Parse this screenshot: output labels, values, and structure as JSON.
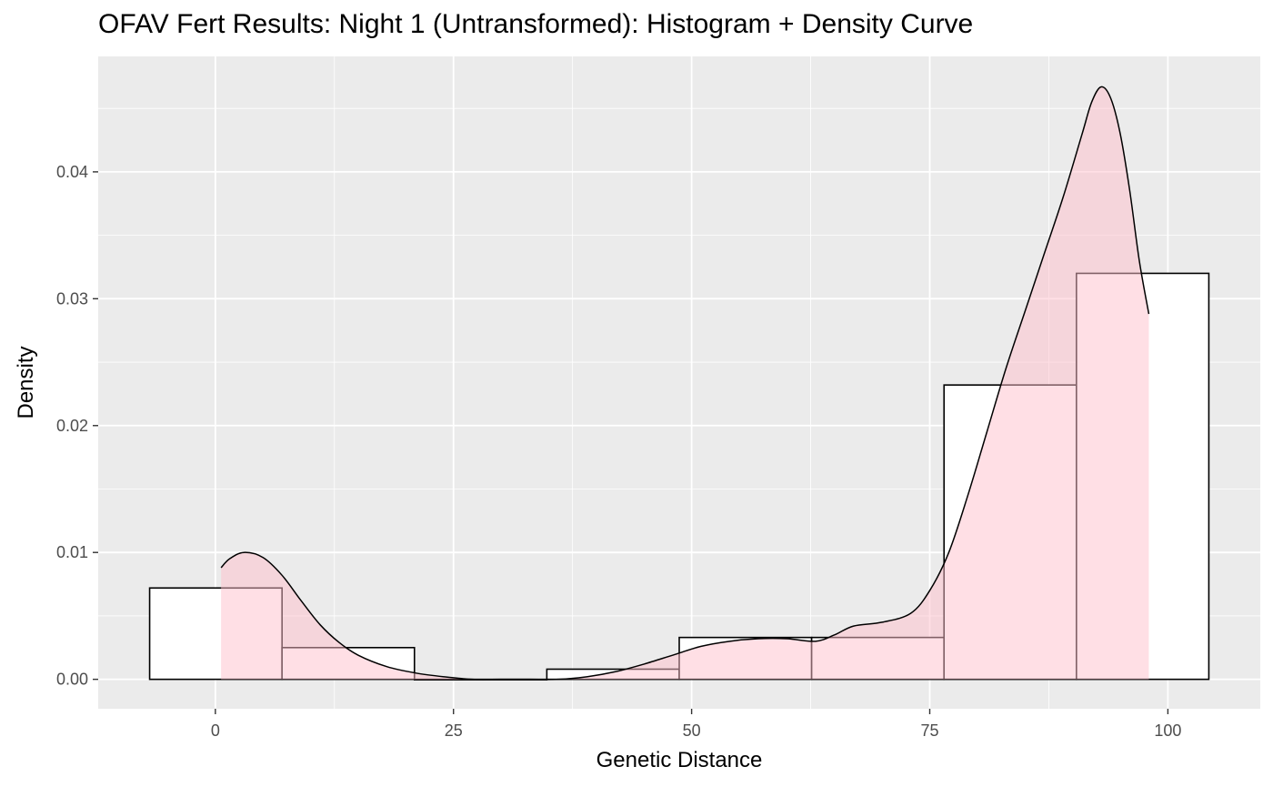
{
  "chart_data": {
    "type": "bar",
    "subtype": "histogram-with-density",
    "title": "OFAV Fert Results: Night 1 (Untransformed): Histogram + Density Curve",
    "xlabel": "Genetic Distance",
    "ylabel": "Density",
    "xlim": [
      -12.3,
      109.7
    ],
    "ylim": [
      -0.00232,
      0.0491
    ],
    "x_ticks": [
      0,
      25,
      50,
      75,
      100
    ],
    "x_tick_labels": [
      "0",
      "25",
      "50",
      "75",
      "100"
    ],
    "y_ticks": [
      0,
      0.01,
      0.02,
      0.03,
      0.04
    ],
    "y_tick_labels": [
      "0.00",
      "0.01",
      "0.02",
      "0.03",
      "0.04"
    ],
    "grid": true,
    "legend": "none",
    "histogram": {
      "bin_edges": [
        -6.9,
        7.0,
        20.9,
        34.8,
        48.7,
        62.6,
        76.5,
        90.4,
        104.3
      ],
      "density": [
        0.0072,
        0.0025,
        0.0,
        0.0008,
        0.0033,
        0.0033,
        0.0232,
        0.032
      ]
    },
    "density_curve": {
      "x": [
        0.6,
        1.5,
        3,
        5,
        7,
        9,
        11,
        13,
        15,
        18,
        21,
        24,
        27,
        30,
        33,
        36,
        39,
        42,
        45,
        48,
        51,
        54,
        57,
        60,
        63,
        65,
        67,
        70,
        73,
        75,
        77,
        79,
        81,
        83,
        85,
        87,
        89,
        91,
        92,
        93,
        94,
        95,
        96,
        97,
        98
      ],
      "y": [
        0.0088,
        0.0095,
        0.01,
        0.0096,
        0.0082,
        0.0062,
        0.0043,
        0.0029,
        0.0019,
        0.001,
        0.0005,
        0.0002,
        0.0,
        0.0,
        0.0,
        0.0,
        0.0002,
        0.0006,
        0.0012,
        0.0019,
        0.0026,
        0.003,
        0.0032,
        0.0032,
        0.003,
        0.0035,
        0.0042,
        0.0045,
        0.0052,
        0.007,
        0.01,
        0.0145,
        0.0195,
        0.0245,
        0.029,
        0.0335,
        0.038,
        0.043,
        0.0455,
        0.0467,
        0.0458,
        0.043,
        0.0385,
        0.033,
        0.0288
      ]
    },
    "colors": {
      "panel_background": "#ebebeb",
      "grid": "#ffffff",
      "bar_fill": "#ffffff",
      "bar_outline": "#000000",
      "density_fill": "#ffc0cb",
      "density_fill_alpha": 0.5,
      "density_line": "#000000"
    }
  }
}
